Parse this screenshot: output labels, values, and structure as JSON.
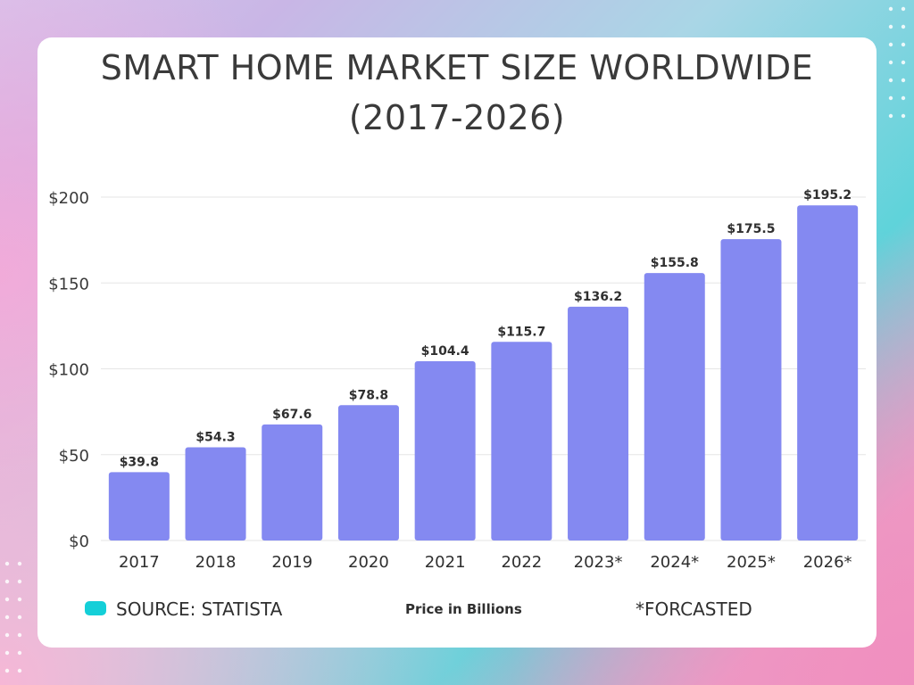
{
  "chart_data": {
    "type": "bar",
    "title": "SMART HOME MARKET SIZE WORLDWIDE",
    "subtitle": "(2017-2026)",
    "categories": [
      "2017",
      "2018",
      "2019",
      "2020",
      "2021",
      "2022",
      "2023*",
      "2024*",
      "2025*",
      "2026*"
    ],
    "values": [
      39.8,
      54.3,
      67.6,
      78.8,
      104.4,
      115.7,
      136.2,
      155.8,
      175.5,
      195.2
    ],
    "data_labels": [
      "$39.8",
      "$54.3",
      "$67.6",
      "$78.8",
      "$104.4",
      "$115.7",
      "$136.2",
      "$155.8",
      "$175.5",
      "$195.2"
    ],
    "yticks": [
      "$0",
      "$50",
      "$100",
      "$150",
      "$200"
    ],
    "ytick_values": [
      0,
      50,
      100,
      150,
      200
    ],
    "ylim": [
      0,
      200
    ],
    "grid": true,
    "bar_color": "#8489f1",
    "legend": {
      "source": "SOURCE: STATISTA",
      "unit": "Price in Billions",
      "note": "*FORCASTED",
      "swatch_color": "#14cfd8"
    }
  }
}
